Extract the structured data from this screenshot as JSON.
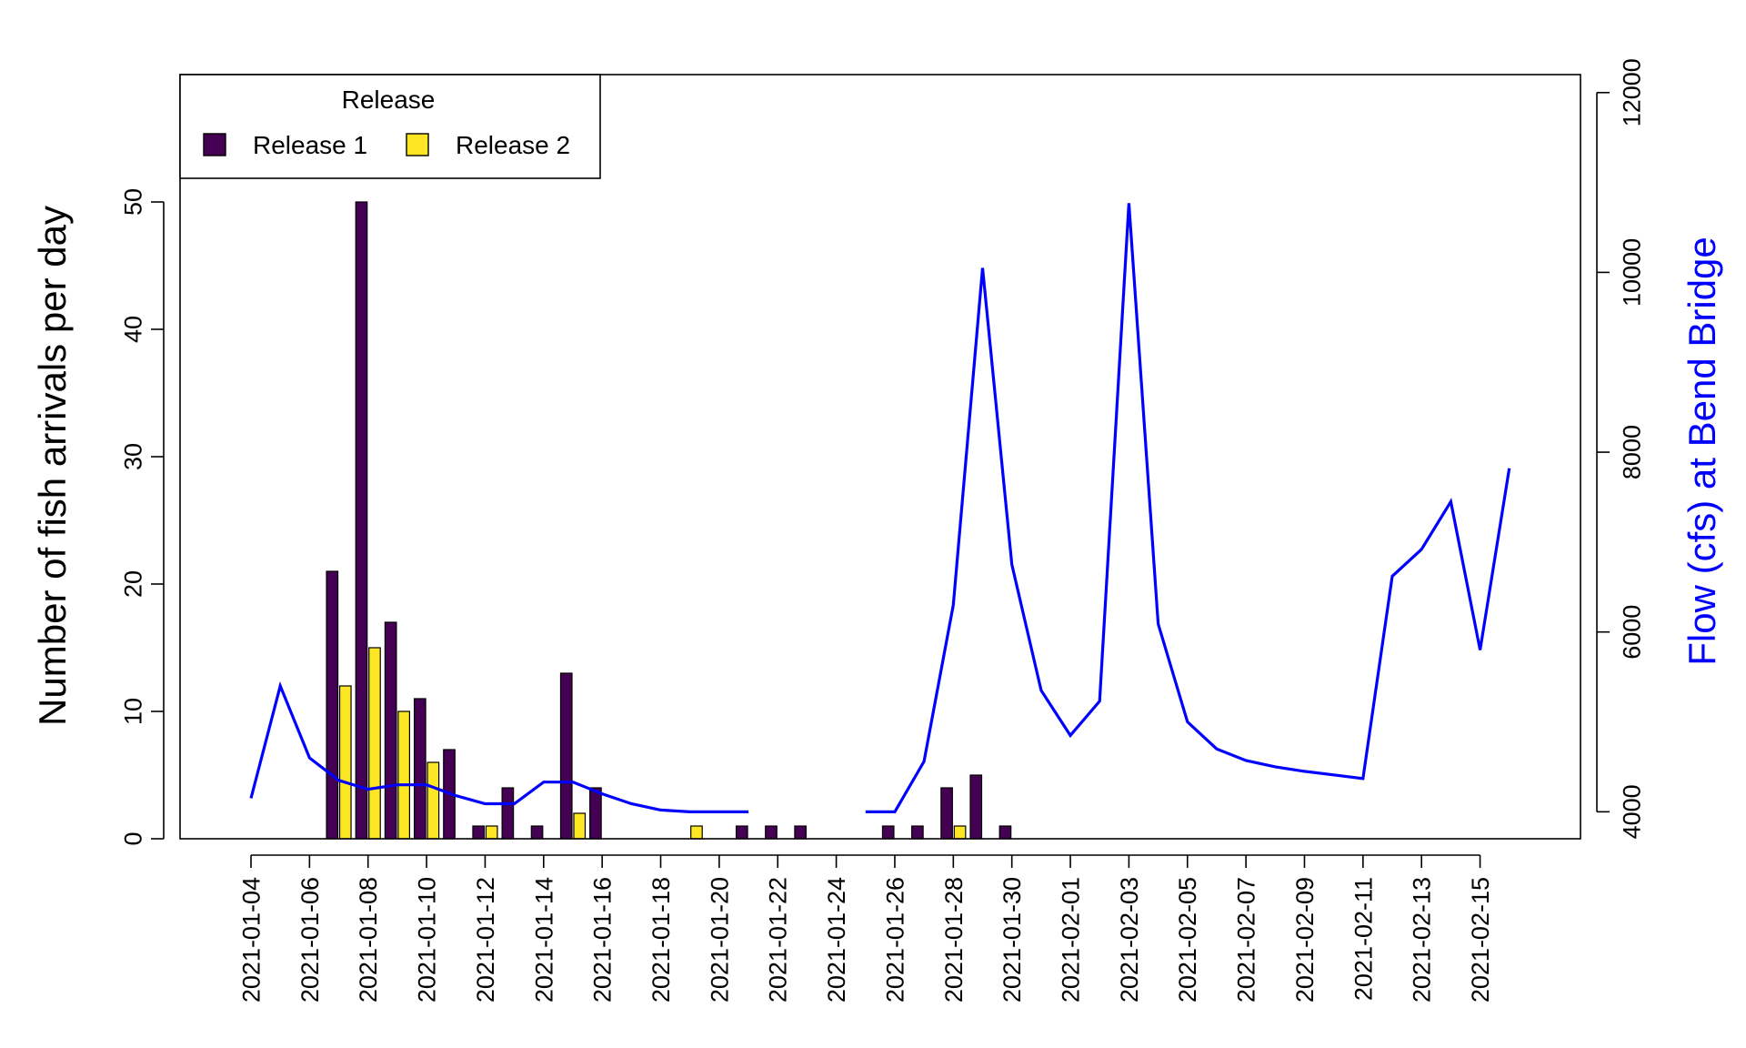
{
  "chart_data": {
    "type": "bar",
    "ylabel": "Number of fish arrivals per day",
    "y2label": "Flow (cfs) at Bend Bridge",
    "ylim": [
      0,
      60
    ],
    "y_ticks": [
      0,
      10,
      20,
      30,
      40,
      50
    ],
    "y2lim": [
      3700,
      12200
    ],
    "y2_ticks": [
      4000,
      6000,
      8000,
      10000,
      12000
    ],
    "grid": false,
    "legend": {
      "title": "Release",
      "position": "top-left",
      "entries": [
        "Release 1",
        "Release 2"
      ]
    },
    "colors": {
      "release1": "#440154",
      "release2": "#FDE725",
      "flow": "#0000FF",
      "y2label": "#0000FF"
    },
    "x_tick_labels": [
      "2021-01-04",
      "2021-01-06",
      "2021-01-08",
      "2021-01-10",
      "2021-01-12",
      "2021-01-14",
      "2021-01-16",
      "2021-01-18",
      "2021-01-20",
      "2021-01-22",
      "2021-01-24",
      "2021-01-26",
      "2021-01-28",
      "2021-01-30",
      "2021-02-01",
      "2021-02-03",
      "2021-02-05",
      "2021-02-07",
      "2021-02-09",
      "2021-02-11",
      "2021-02-13",
      "2021-02-15"
    ],
    "x_start": "2021-01-04",
    "bars": [
      {
        "date": "2021-01-07",
        "release1": 21,
        "release2": 12
      },
      {
        "date": "2021-01-08",
        "release1": 50,
        "release2": 15
      },
      {
        "date": "2021-01-09",
        "release1": 17,
        "release2": 10
      },
      {
        "date": "2021-01-10",
        "release1": 11,
        "release2": 6
      },
      {
        "date": "2021-01-11",
        "release1": 7,
        "release2": 0
      },
      {
        "date": "2021-01-12",
        "release1": 1,
        "release2": 1
      },
      {
        "date": "2021-01-13",
        "release1": 4,
        "release2": 0
      },
      {
        "date": "2021-01-14",
        "release1": 1,
        "release2": 0
      },
      {
        "date": "2021-01-15",
        "release1": 13,
        "release2": 2
      },
      {
        "date": "2021-01-16",
        "release1": 4,
        "release2": 0
      },
      {
        "date": "2021-01-19",
        "release1": 0,
        "release2": 1
      },
      {
        "date": "2021-01-21",
        "release1": 1,
        "release2": 0
      },
      {
        "date": "2021-01-22",
        "release1": 1,
        "release2": 0
      },
      {
        "date": "2021-01-23",
        "release1": 1,
        "release2": 0
      },
      {
        "date": "2021-01-26",
        "release1": 1,
        "release2": 0
      },
      {
        "date": "2021-01-27",
        "release1": 1,
        "release2": 0
      },
      {
        "date": "2021-01-28",
        "release1": 4,
        "release2": 1
      },
      {
        "date": "2021-01-29",
        "release1": 5,
        "release2": 0
      },
      {
        "date": "2021-01-30",
        "release1": 1,
        "release2": 0
      }
    ],
    "flow_segments": [
      [
        {
          "date": "2021-01-04",
          "flow": 4150
        },
        {
          "date": "2021-01-05",
          "flow": 5400
        },
        {
          "date": "2021-01-06",
          "flow": 4600
        },
        {
          "date": "2021-01-07",
          "flow": 4350
        },
        {
          "date": "2021-01-08",
          "flow": 4250
        },
        {
          "date": "2021-01-09",
          "flow": 4300
        },
        {
          "date": "2021-01-10",
          "flow": 4300
        },
        {
          "date": "2021-01-11",
          "flow": 4180
        },
        {
          "date": "2021-01-12",
          "flow": 4090
        },
        {
          "date": "2021-01-13",
          "flow": 4090
        },
        {
          "date": "2021-01-14",
          "flow": 4330
        },
        {
          "date": "2021-01-15",
          "flow": 4330
        },
        {
          "date": "2021-01-16",
          "flow": 4200
        },
        {
          "date": "2021-01-17",
          "flow": 4090
        },
        {
          "date": "2021-01-18",
          "flow": 4020
        },
        {
          "date": "2021-01-19",
          "flow": 4000
        },
        {
          "date": "2021-01-20",
          "flow": 4000
        },
        {
          "date": "2021-01-21",
          "flow": 4000
        }
      ],
      [
        {
          "date": "2021-01-25",
          "flow": 4000
        },
        {
          "date": "2021-01-26",
          "flow": 4000
        },
        {
          "date": "2021-01-27",
          "flow": 4560
        },
        {
          "date": "2021-01-28",
          "flow": 6300
        },
        {
          "date": "2021-01-29",
          "flow": 10050
        },
        {
          "date": "2021-01-30",
          "flow": 6750
        },
        {
          "date": "2021-01-31",
          "flow": 5350
        },
        {
          "date": "2021-02-01",
          "flow": 4850
        },
        {
          "date": "2021-02-02",
          "flow": 5230
        },
        {
          "date": "2021-02-03",
          "flow": 10770
        },
        {
          "date": "2021-02-04",
          "flow": 6090
        },
        {
          "date": "2021-02-05",
          "flow": 5000
        },
        {
          "date": "2021-02-06",
          "flow": 4700
        },
        {
          "date": "2021-02-07",
          "flow": 4570
        },
        {
          "date": "2021-02-08",
          "flow": 4500
        },
        {
          "date": "2021-02-09",
          "flow": 4450
        },
        {
          "date": "2021-02-10",
          "flow": 4410
        },
        {
          "date": "2021-02-11",
          "flow": 4370
        },
        {
          "date": "2021-02-12",
          "flow": 6620
        },
        {
          "date": "2021-02-13",
          "flow": 6920
        },
        {
          "date": "2021-02-14",
          "flow": 7450
        },
        {
          "date": "2021-02-15",
          "flow": 5800
        },
        {
          "date": "2021-02-16",
          "flow": 7820
        }
      ]
    ]
  }
}
